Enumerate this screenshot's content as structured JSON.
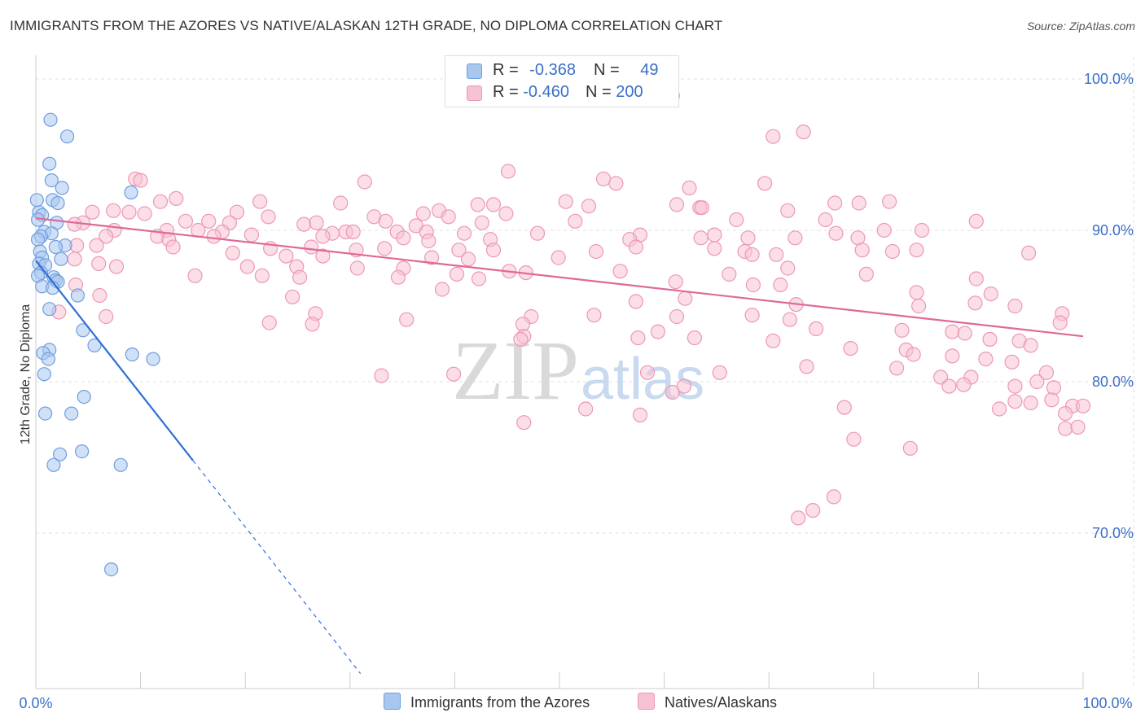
{
  "title": "IMMIGRANTS FROM THE AZORES VS NATIVE/ALASKAN 12TH GRADE, NO DIPLOMA CORRELATION CHART",
  "source": "Source: ZipAtlas.com",
  "watermark": {
    "zip": "ZIP",
    "atlas": "atlas"
  },
  "legend": {
    "rows": [
      {
        "r_label": "R = ",
        "r_value": "-0.368",
        "n_label": "N = ",
        "n_value": "49"
      },
      {
        "r_label": "R = ",
        "r_value": "-0.460",
        "n_label": "N = ",
        "n_value": "200"
      }
    ]
  },
  "bottom_legend": [
    {
      "label": "Immigrants from the Azores"
    },
    {
      "label": "Natives/Alaskans"
    }
  ],
  "colors": {
    "blue_fill": "#a9c6ee",
    "blue_stroke": "#6f9ee0",
    "blue_line": "#2f6fd6",
    "pink_fill": "#f7c3d4",
    "pink_stroke": "#ec98b6",
    "pink_line": "#e0689a",
    "axis_label": "#3a6fc8",
    "grid": "#e2e2e2"
  },
  "chart_data": {
    "type": "scatter",
    "title": "IMMIGRANTS FROM THE AZORES VS NATIVE/ALASKAN 12TH GRADE, NO DIPLOMA CORRELATION CHART",
    "xlabel": "",
    "ylabel": "12th Grade, No Diploma",
    "xlim": [
      0,
      100
    ],
    "ylim": [
      60,
      100
    ],
    "x_tick_labels": [
      "0.0%",
      "100.0%"
    ],
    "y_ticks": [
      70,
      80,
      90,
      100
    ],
    "y_tick_labels": [
      "70.0%",
      "80.0%",
      "90.0%",
      "100.0%"
    ],
    "series": [
      {
        "name": "Immigrants from the Azores",
        "R": -0.368,
        "N": 49,
        "trend": {
          "x0": 0,
          "y0": 88.0,
          "x1": 15.0,
          "y1": 74.8,
          "dash_to_x": 31.0
        },
        "points": [
          [
            1.4,
            97.3
          ],
          [
            3.0,
            96.2
          ],
          [
            1.3,
            94.4
          ],
          [
            1.5,
            93.3
          ],
          [
            2.5,
            92.8
          ],
          [
            9.1,
            92.5
          ],
          [
            1.6,
            92.0
          ],
          [
            2.1,
            91.8
          ],
          [
            0.3,
            91.2
          ],
          [
            0.6,
            91.0
          ],
          [
            0.2,
            90.7
          ],
          [
            2.0,
            90.5
          ],
          [
            0.8,
            89.9
          ],
          [
            1.5,
            89.8
          ],
          [
            0.5,
            89.6
          ],
          [
            0.2,
            89.4
          ],
          [
            2.8,
            89.0
          ],
          [
            1.9,
            88.9
          ],
          [
            0.4,
            88.6
          ],
          [
            0.6,
            88.2
          ],
          [
            2.4,
            88.1
          ],
          [
            0.3,
            87.8
          ],
          [
            0.9,
            87.7
          ],
          [
            0.5,
            87.2
          ],
          [
            0.2,
            87.0
          ],
          [
            1.7,
            86.9
          ],
          [
            1.9,
            86.7
          ],
          [
            2.1,
            86.6
          ],
          [
            0.6,
            86.3
          ],
          [
            1.6,
            86.2
          ],
          [
            4.0,
            85.7
          ],
          [
            1.3,
            84.8
          ],
          [
            4.5,
            83.4
          ],
          [
            5.6,
            82.4
          ],
          [
            1.3,
            82.1
          ],
          [
            0.7,
            81.9
          ],
          [
            1.2,
            81.5
          ],
          [
            9.2,
            81.8
          ],
          [
            11.2,
            81.5
          ],
          [
            0.8,
            80.5
          ],
          [
            4.6,
            79.0
          ],
          [
            0.9,
            77.9
          ],
          [
            3.4,
            77.9
          ],
          [
            4.4,
            75.4
          ],
          [
            2.3,
            75.2
          ],
          [
            1.7,
            74.5
          ],
          [
            8.1,
            74.5
          ],
          [
            7.2,
            67.6
          ],
          [
            0.1,
            92.0
          ]
        ]
      },
      {
        "name": "Natives/Alaskans",
        "R": -0.46,
        "N": 200,
        "trend": {
          "x0": 0,
          "y0": 90.8,
          "x1": 100,
          "y1": 83.0
        },
        "points": [
          [
            60.8,
            98.9
          ],
          [
            73.3,
            96.5
          ],
          [
            70.4,
            96.2
          ],
          [
            45.1,
            93.9
          ],
          [
            9.5,
            93.4
          ],
          [
            10.0,
            93.3
          ],
          [
            54.2,
            93.4
          ],
          [
            55.4,
            93.1
          ],
          [
            31.4,
            93.2
          ],
          [
            69.6,
            93.1
          ],
          [
            62.4,
            92.8
          ],
          [
            13.4,
            92.1
          ],
          [
            11.9,
            91.9
          ],
          [
            21.4,
            91.9
          ],
          [
            29.1,
            91.8
          ],
          [
            42.2,
            91.7
          ],
          [
            50.6,
            91.9
          ],
          [
            43.7,
            91.7
          ],
          [
            52.8,
            91.6
          ],
          [
            61.2,
            91.7
          ],
          [
            63.4,
            91.5
          ],
          [
            7.4,
            91.3
          ],
          [
            19.2,
            91.2
          ],
          [
            37.0,
            91.1
          ],
          [
            44.9,
            91.1
          ],
          [
            5.4,
            91.2
          ],
          [
            8.9,
            91.2
          ],
          [
            10.4,
            91.1
          ],
          [
            38.5,
            91.3
          ],
          [
            32.3,
            90.9
          ],
          [
            71.8,
            91.3
          ],
          [
            76.3,
            91.8
          ],
          [
            78.6,
            91.8
          ],
          [
            81.5,
            91.9
          ],
          [
            63.6,
            91.5
          ],
          [
            22.2,
            90.9
          ],
          [
            33.4,
            90.6
          ],
          [
            39.4,
            90.9
          ],
          [
            4.5,
            90.5
          ],
          [
            14.3,
            90.6
          ],
          [
            16.5,
            90.6
          ],
          [
            18.5,
            90.5
          ],
          [
            25.6,
            90.4
          ],
          [
            26.8,
            90.5
          ],
          [
            36.3,
            90.3
          ],
          [
            42.6,
            90.5
          ],
          [
            51.5,
            90.6
          ],
          [
            66.9,
            90.7
          ],
          [
            75.4,
            90.7
          ],
          [
            89.8,
            90.6
          ],
          [
            3.7,
            90.4
          ],
          [
            7.5,
            90.0
          ],
          [
            12.5,
            90.0
          ],
          [
            15.5,
            90.0
          ],
          [
            17.8,
            89.9
          ],
          [
            20.6,
            89.7
          ],
          [
            28.3,
            89.8
          ],
          [
            29.6,
            89.9
          ],
          [
            30.3,
            89.9
          ],
          [
            34.5,
            89.9
          ],
          [
            37.3,
            89.9
          ],
          [
            40.9,
            89.8
          ],
          [
            47.9,
            89.8
          ],
          [
            57.7,
            89.7
          ],
          [
            64.8,
            89.7
          ],
          [
            76.4,
            89.8
          ],
          [
            81.0,
            90.0
          ],
          [
            84.6,
            90.0
          ],
          [
            6.7,
            89.6
          ],
          [
            11.6,
            89.6
          ],
          [
            12.7,
            89.4
          ],
          [
            17.0,
            89.6
          ],
          [
            27.4,
            89.6
          ],
          [
            35.1,
            89.5
          ],
          [
            37.5,
            89.3
          ],
          [
            43.4,
            89.4
          ],
          [
            56.7,
            89.4
          ],
          [
            63.5,
            89.5
          ],
          [
            68.0,
            89.5
          ],
          [
            72.5,
            89.5
          ],
          [
            78.5,
            89.5
          ],
          [
            3.9,
            89.0
          ],
          [
            5.8,
            89.0
          ],
          [
            13.1,
            88.9
          ],
          [
            22.4,
            88.8
          ],
          [
            26.3,
            88.9
          ],
          [
            30.6,
            88.7
          ],
          [
            33.3,
            88.8
          ],
          [
            40.4,
            88.7
          ],
          [
            43.7,
            88.7
          ],
          [
            53.5,
            88.6
          ],
          [
            57.3,
            88.9
          ],
          [
            64.8,
            88.8
          ],
          [
            67.7,
            88.6
          ],
          [
            78.9,
            88.7
          ],
          [
            81.8,
            88.6
          ],
          [
            84.1,
            88.7
          ],
          [
            94.8,
            88.5
          ],
          [
            18.8,
            88.5
          ],
          [
            23.9,
            88.3
          ],
          [
            27.4,
            88.3
          ],
          [
            37.8,
            88.2
          ],
          [
            41.3,
            88.1
          ],
          [
            49.9,
            88.2
          ],
          [
            68.4,
            88.4
          ],
          [
            70.7,
            88.4
          ],
          [
            3.7,
            88.1
          ],
          [
            6.0,
            87.8
          ],
          [
            7.7,
            87.6
          ],
          [
            20.2,
            87.6
          ],
          [
            24.9,
            87.6
          ],
          [
            30.7,
            87.5
          ],
          [
            35.1,
            87.5
          ],
          [
            40.2,
            87.1
          ],
          [
            45.2,
            87.3
          ],
          [
            46.8,
            87.2
          ],
          [
            55.8,
            87.3
          ],
          [
            66.2,
            87.1
          ],
          [
            71.8,
            87.5
          ],
          [
            79.3,
            87.1
          ],
          [
            89.8,
            86.8
          ],
          [
            15.2,
            87.0
          ],
          [
            21.6,
            87.0
          ],
          [
            25.2,
            86.9
          ],
          [
            34.6,
            86.9
          ],
          [
            42.3,
            86.8
          ],
          [
            61.1,
            86.6
          ],
          [
            68.5,
            86.4
          ],
          [
            71.1,
            86.4
          ],
          [
            84.1,
            85.9
          ],
          [
            91.2,
            85.8
          ],
          [
            3.8,
            86.4
          ],
          [
            6.1,
            85.7
          ],
          [
            24.5,
            85.6
          ],
          [
            38.8,
            86.1
          ],
          [
            62.0,
            85.5
          ],
          [
            57.3,
            85.3
          ],
          [
            72.6,
            85.1
          ],
          [
            84.3,
            85.0
          ],
          [
            89.7,
            85.2
          ],
          [
            93.5,
            85.0
          ],
          [
            2.2,
            84.6
          ],
          [
            6.7,
            84.3
          ],
          [
            26.7,
            84.5
          ],
          [
            35.4,
            84.1
          ],
          [
            47.3,
            84.3
          ],
          [
            53.3,
            84.4
          ],
          [
            61.2,
            84.3
          ],
          [
            68.4,
            84.4
          ],
          [
            72.0,
            84.1
          ],
          [
            98.0,
            84.5
          ],
          [
            22.3,
            83.9
          ],
          [
            26.4,
            83.8
          ],
          [
            46.5,
            83.8
          ],
          [
            59.4,
            83.3
          ],
          [
            74.5,
            83.5
          ],
          [
            82.7,
            83.4
          ],
          [
            87.5,
            83.3
          ],
          [
            88.7,
            83.2
          ],
          [
            97.8,
            83.9
          ],
          [
            46.6,
            83.0
          ],
          [
            57.5,
            82.9
          ],
          [
            62.9,
            82.9
          ],
          [
            70.4,
            82.7
          ],
          [
            77.8,
            82.2
          ],
          [
            83.1,
            82.1
          ],
          [
            91.1,
            82.8
          ],
          [
            93.9,
            82.7
          ],
          [
            95.0,
            82.4
          ],
          [
            83.8,
            81.8
          ],
          [
            87.5,
            81.7
          ],
          [
            90.7,
            81.5
          ],
          [
            93.2,
            81.3
          ],
          [
            46.3,
            82.8
          ],
          [
            73.6,
            81.0
          ],
          [
            82.2,
            80.9
          ],
          [
            96.5,
            80.6
          ],
          [
            33.0,
            80.4
          ],
          [
            58.4,
            80.6
          ],
          [
            65.3,
            80.6
          ],
          [
            86.4,
            80.3
          ],
          [
            89.3,
            80.3
          ],
          [
            93.5,
            79.7
          ],
          [
            95.6,
            80.0
          ],
          [
            60.8,
            79.3
          ],
          [
            61.9,
            79.7
          ],
          [
            97.2,
            79.6
          ],
          [
            87.2,
            79.7
          ],
          [
            88.6,
            79.8
          ],
          [
            93.5,
            78.7
          ],
          [
            97.0,
            78.8
          ],
          [
            99.0,
            78.4
          ],
          [
            52.5,
            78.2
          ],
          [
            77.2,
            78.3
          ],
          [
            92.0,
            78.2
          ],
          [
            95.0,
            78.6
          ],
          [
            98.3,
            77.9
          ],
          [
            98.3,
            76.9
          ],
          [
            99.5,
            77.0
          ],
          [
            83.5,
            75.6
          ],
          [
            78.1,
            76.2
          ],
          [
            46.6,
            77.3
          ],
          [
            57.7,
            77.8
          ],
          [
            72.8,
            71.0
          ],
          [
            74.2,
            71.5
          ],
          [
            76.2,
            72.4
          ],
          [
            39.9,
            80.5
          ],
          [
            100.0,
            78.4
          ]
        ]
      }
    ]
  }
}
